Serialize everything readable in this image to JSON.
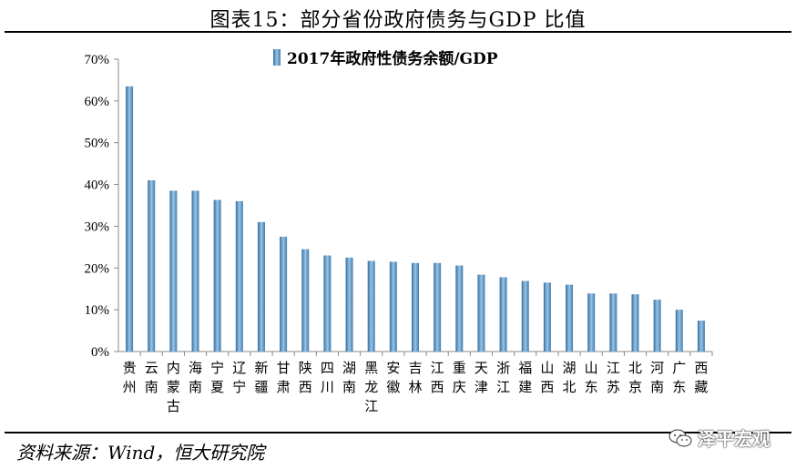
{
  "figure": {
    "title": "图表15：部分省份政府债务与GDP 比值",
    "source": "资料来源：Wind，恒大研究院",
    "watermark": "泽平宏观"
  },
  "colors": {
    "bar_left": "#2f6fa3",
    "bar_mid": "#9cc3e4",
    "bar_right": "#3d7cb2",
    "axis": "#888888"
  },
  "chart_data": {
    "type": "bar",
    "title": "",
    "xlabel": "",
    "ylabel": "",
    "ylim": [
      0,
      70
    ],
    "yticks": [
      0,
      10,
      20,
      30,
      40,
      50,
      60,
      70
    ],
    "ytick_labels": [
      "0%",
      "10%",
      "20%",
      "30%",
      "40%",
      "50%",
      "60%",
      "70%"
    ],
    "legend": {
      "label": "2017年政府性债务余额/GDP",
      "position": "top-center"
    },
    "categories": [
      "贵州",
      "云南",
      "内蒙古",
      "海南",
      "宁夏",
      "辽宁",
      "新疆",
      "甘肃",
      "陕西",
      "四川",
      "湖南",
      "黑龙江",
      "安徽",
      "吉林",
      "江西",
      "重庆",
      "天津",
      "浙江",
      "福建",
      "山西",
      "湖北",
      "山东",
      "江苏",
      "北京",
      "河南",
      "广东",
      "西藏"
    ],
    "series": [
      {
        "name": "2017年政府性债务余额/GDP",
        "values": [
          63.5,
          41.0,
          38.5,
          38.5,
          36.3,
          36.0,
          31.0,
          27.5,
          24.5,
          23.0,
          22.5,
          21.7,
          21.5,
          21.2,
          21.2,
          20.6,
          18.4,
          17.8,
          16.9,
          16.5,
          16.0,
          13.9,
          13.9,
          13.7,
          12.4,
          10.0,
          7.4
        ]
      }
    ]
  }
}
